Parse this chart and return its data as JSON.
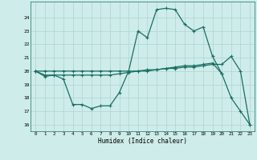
{
  "xlabel": "Humidex (Indice chaleur)",
  "bg_color": "#ceecea",
  "grid_color": "#aed4d0",
  "line_color": "#1a6e62",
  "x": [
    0,
    1,
    2,
    3,
    4,
    5,
    6,
    7,
    8,
    9,
    10,
    11,
    12,
    13,
    14,
    15,
    16,
    17,
    18,
    19,
    20,
    21,
    22,
    23
  ],
  "line1": [
    20.0,
    19.6,
    19.7,
    19.4,
    17.5,
    17.5,
    17.2,
    17.4,
    17.4,
    18.4,
    20.0,
    23.0,
    22.5,
    24.6,
    24.7,
    24.6,
    23.5,
    23.0,
    23.3,
    21.1,
    19.8,
    18.0,
    17.0,
    16.0
  ],
  "line2": [
    20.0,
    19.7,
    19.7,
    19.7,
    19.7,
    19.7,
    19.7,
    19.7,
    19.7,
    19.8,
    19.9,
    20.0,
    20.0,
    20.1,
    20.2,
    20.3,
    20.4,
    20.4,
    20.5,
    20.6,
    19.8,
    null,
    null,
    null
  ],
  "line3": [
    20.0,
    20.0,
    20.0,
    20.0,
    20.0,
    20.0,
    20.0,
    20.0,
    20.0,
    20.0,
    20.0,
    20.0,
    20.1,
    20.1,
    20.2,
    20.2,
    20.3,
    20.3,
    20.4,
    20.5,
    20.5,
    21.1,
    20.0,
    16.0
  ],
  "ylim": [
    15.5,
    25.2
  ],
  "yticks": [
    16,
    17,
    18,
    19,
    20,
    21,
    22,
    23,
    24
  ],
  "xlim": [
    -0.5,
    23.5
  ]
}
